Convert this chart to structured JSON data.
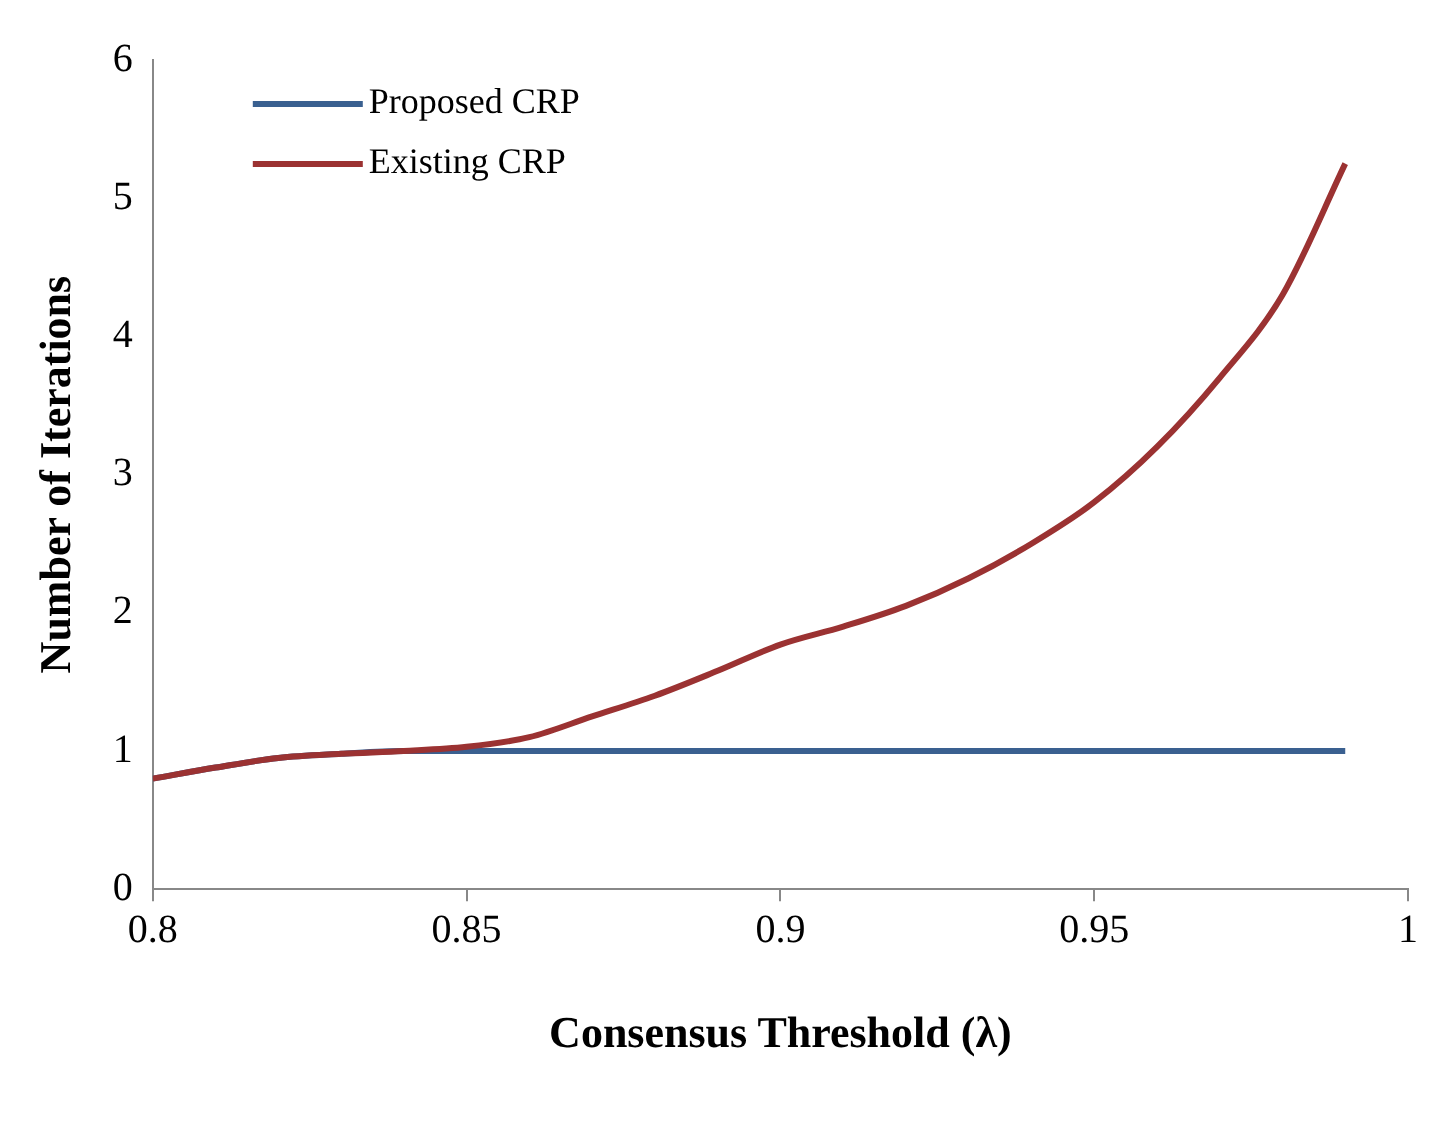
{
  "chart_data": {
    "type": "line",
    "xlabel": "Consensus Threshold (λ)",
    "ylabel": "Number of Iterations",
    "x": [
      0.8,
      0.81,
      0.82,
      0.83,
      0.84,
      0.85,
      0.86,
      0.87,
      0.88,
      0.89,
      0.9,
      0.91,
      0.92,
      0.93,
      0.94,
      0.95,
      0.96,
      0.97,
      0.98,
      0.99
    ],
    "series": [
      {
        "name": "Proposed CRP",
        "color": "#3a6090",
        "values": [
          0.8,
          0.88,
          0.95,
          0.98,
          1,
          1,
          1,
          1,
          1,
          1,
          1,
          1,
          1,
          1,
          1,
          1,
          1,
          1,
          1,
          1
        ]
      },
      {
        "name": "Existing CRP",
        "color": "#9b3232",
        "values": [
          0.8,
          0.88,
          0.95,
          0.98,
          1,
          1.03,
          1.1,
          1.25,
          1.4,
          1.58,
          1.77,
          1.9,
          2.05,
          2.25,
          2.5,
          2.8,
          3.2,
          3.7,
          4.3,
          5.25
        ]
      }
    ],
    "xlim": [
      0.8,
      1
    ],
    "xticks": [
      0.8,
      0.85,
      0.9,
      0.95,
      1
    ],
    "ylim": [
      0,
      6
    ],
    "yticks": [
      0,
      1,
      2,
      3,
      4,
      5,
      6
    ],
    "grid": false,
    "legend": "top left",
    "marker": "none",
    "line_style": "solid"
  }
}
